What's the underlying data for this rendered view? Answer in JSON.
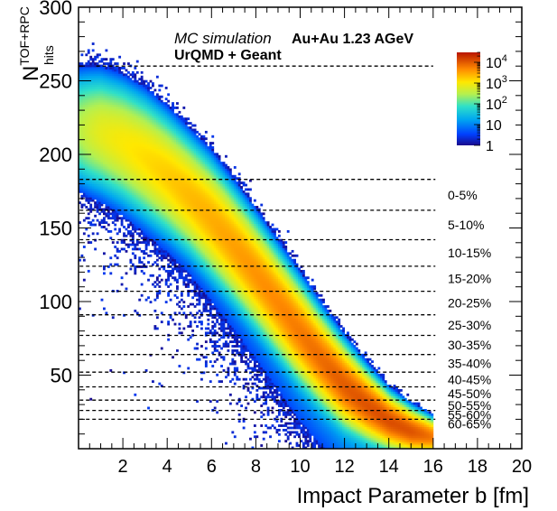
{
  "chart_data": {
    "type": "heatmap",
    "annotations": {
      "line1_italic": "MC simulation",
      "line1_bold": "Au+Au 1.23 AGeV",
      "line2_bold": "UrQMD + Geant"
    },
    "xlabel": "Impact Parameter b [fm]",
    "ylabel": {
      "base": "N",
      "sup": "TOF+RPC",
      "sub": "hits"
    },
    "xlim": [
      0,
      20
    ],
    "ylim": [
      0,
      300
    ],
    "x_ticks": [
      "2",
      "4",
      "6",
      "8",
      "10",
      "12",
      "14",
      "16",
      "18",
      "20"
    ],
    "y_ticks": [
      "50",
      "100",
      "150",
      "200",
      "250",
      "300"
    ],
    "x_tick_values": [
      2,
      4,
      6,
      8,
      10,
      12,
      14,
      16,
      18,
      20
    ],
    "y_tick_values": [
      50,
      100,
      150,
      200,
      250,
      300
    ],
    "colorbar": {
      "scale": "log",
      "range": [
        1,
        30000
      ],
      "ticks": [
        {
          "base": "10",
          "exp": "4",
          "value": 10000
        },
        {
          "base": "10",
          "exp": "3",
          "value": 1000
        },
        {
          "base": "10",
          "exp": "2",
          "value": 100
        },
        {
          "base": "10",
          "exp": "",
          "value": 10
        },
        {
          "base": "1",
          "exp": "",
          "value": 1
        }
      ]
    },
    "density_ridge": {
      "b": [
        0.0,
        1.0,
        2.0,
        3.0,
        4.0,
        5.0,
        6.0,
        7.0,
        8.0,
        9.0,
        10.0,
        11.0,
        12.0,
        13.0,
        14.0,
        15.0,
        16.0
      ],
      "mean_nhits": [
        218,
        215,
        208,
        198,
        186,
        172,
        156,
        138,
        119,
        99,
        79,
        60,
        43,
        30,
        19,
        12,
        8
      ],
      "sigma_nhits": [
        14,
        14,
        14,
        14,
        13.5,
        13,
        13,
        12.5,
        12,
        11.5,
        11,
        10,
        9,
        7.5,
        6,
        5,
        4
      ],
      "peak_counts": [
        300,
        700,
        1000,
        1300,
        1700,
        2200,
        2700,
        3300,
        4000,
        4800,
        6000,
        7500,
        9500,
        11000,
        12000,
        11000,
        6000
      ]
    },
    "centrality_cuts": [
      {
        "label": "0-5%",
        "nhits": 183
      },
      {
        "label": "5-10%",
        "nhits": 162
      },
      {
        "label": "10-15%",
        "nhits": 142
      },
      {
        "label": "15-20%",
        "nhits": 124
      },
      {
        "label": "20-25%",
        "nhits": 107
      },
      {
        "label": "25-30%",
        "nhits": 91
      },
      {
        "label": "30-35%",
        "nhits": 77
      },
      {
        "label": "35-40%",
        "nhits": 64
      },
      {
        "label": "40-45%",
        "nhits": 52
      },
      {
        "label": "45-50%",
        "nhits": 42
      },
      {
        "label": "50-55%",
        "nhits": 33
      },
      {
        "label": "55-60%",
        "nhits": 26
      },
      {
        "label": "60-65%",
        "nhits": 20
      }
    ],
    "top_cut_nhits": 260,
    "grid": false,
    "legend": "colorbar top-right"
  }
}
